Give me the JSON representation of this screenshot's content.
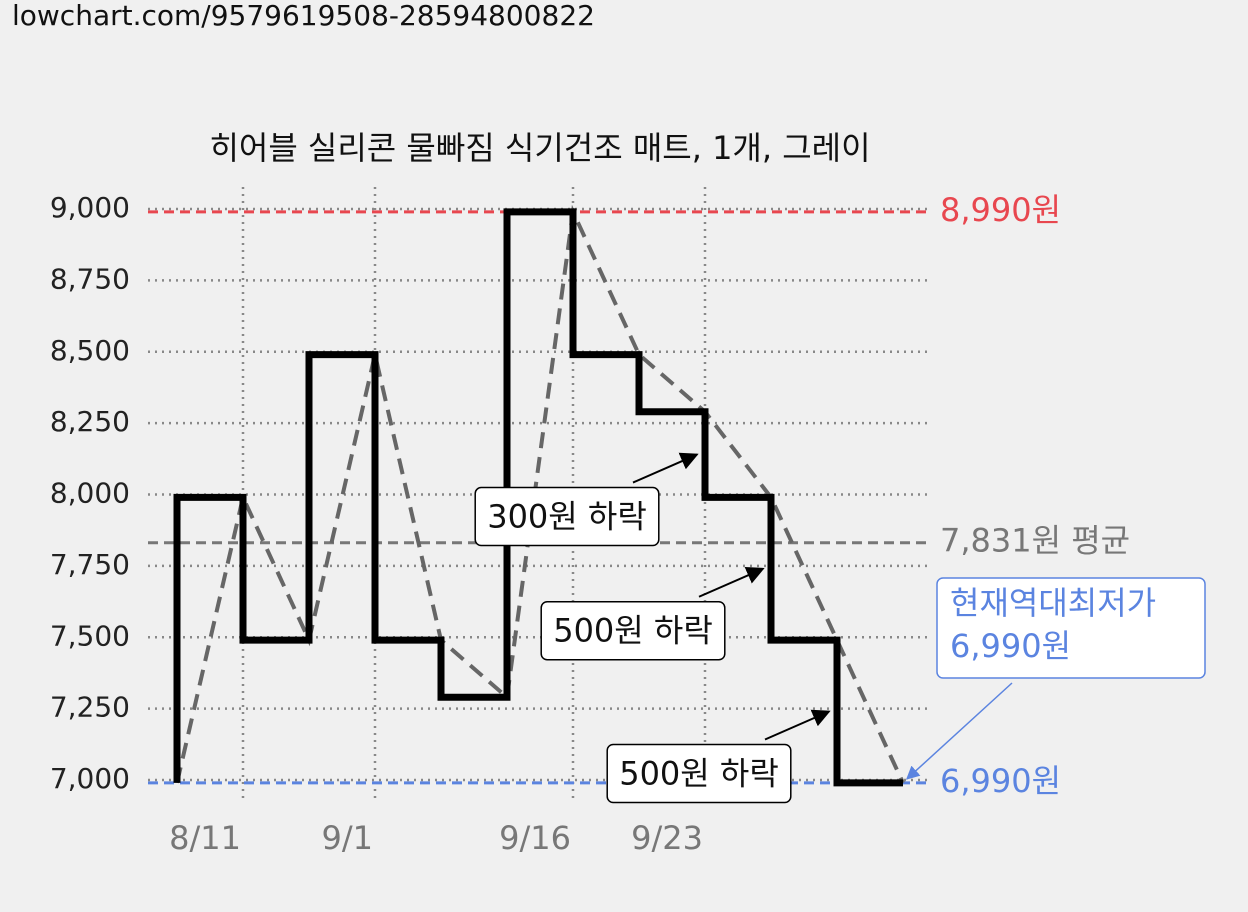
{
  "header": {
    "url": "lowchart.com/9579619508-28594800822"
  },
  "chart_data": {
    "type": "step",
    "title": "히어블 실리콘 물빠짐 식기건조 매트, 1개, 그레이",
    "x": [
      0,
      1,
      2,
      3,
      4,
      5,
      6,
      7,
      8,
      9,
      10,
      11
    ],
    "series": [
      {
        "values": [
          6990,
          7990,
          7490,
          8490,
          7490,
          7290,
          8990,
          8490,
          8290,
          7990,
          7490,
          6990
        ],
        "color": "#000000"
      }
    ],
    "trend_line": true,
    "trend_color": "#666666",
    "xlim": [
      0,
      11
    ],
    "xticks": [
      {
        "value": 1,
        "label": "8/11"
      },
      {
        "value": 3,
        "label": "9/1"
      },
      {
        "value": 6,
        "label": "9/16"
      },
      {
        "value": 8,
        "label": "9/23"
      }
    ],
    "ylim": [
      7000,
      9000
    ],
    "yticks": [
      {
        "value": 7000,
        "label": "7,000"
      },
      {
        "value": 7250,
        "label": "7,250"
      },
      {
        "value": 7500,
        "label": "7,500"
      },
      {
        "value": 7750,
        "label": "7,750"
      },
      {
        "value": 8000,
        "label": "8,000"
      },
      {
        "value": 8250,
        "label": "8,250"
      },
      {
        "value": 8500,
        "label": "8,500"
      },
      {
        "value": 8750,
        "label": "8,750"
      },
      {
        "value": 9000,
        "label": "9,000"
      }
    ],
    "grid": true,
    "reference_lines": [
      {
        "value": 8990,
        "label": "8,990원",
        "color": "#e8474f"
      },
      {
        "value": 7831,
        "label": "7,831원 평균",
        "color": "#777777"
      },
      {
        "value": 6990,
        "label": "6,990원",
        "color": "#5b84e0"
      }
    ],
    "annotations": [
      {
        "text": "300원 하락",
        "x": 8
      },
      {
        "text": "500원 하락",
        "x": 9
      },
      {
        "text": "500원 하락",
        "x": 10
      }
    ],
    "callout": {
      "lines": [
        "현재역대최저가",
        "6,990원"
      ],
      "color": "#5b84e0"
    }
  }
}
